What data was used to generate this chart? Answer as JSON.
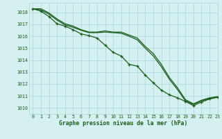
{
  "xlabel": "Graphe pression niveau de la mer (hPa)",
  "xlim": [
    -0.5,
    23
  ],
  "ylim": [
    1009.5,
    1018.8
  ],
  "yticks": [
    1010,
    1011,
    1012,
    1013,
    1014,
    1015,
    1016,
    1017,
    1018
  ],
  "xticks": [
    0,
    1,
    2,
    3,
    4,
    5,
    6,
    7,
    8,
    9,
    10,
    11,
    12,
    13,
    14,
    15,
    16,
    17,
    18,
    19,
    20,
    21,
    22,
    23
  ],
  "bg_color": "#d4f0f0",
  "grid_color": "#aad4d4",
  "line_color": "#1a5c1a",
  "line_smooth1": [
    1018.3,
    1018.3,
    1017.95,
    1017.45,
    1017.05,
    1016.85,
    1016.55,
    1016.35,
    1016.35,
    1016.45,
    1016.35,
    1016.35,
    1016.1,
    1015.85,
    1015.15,
    1014.55,
    1013.65,
    1012.55,
    1011.7,
    1010.7,
    1010.35,
    1010.65,
    1010.85,
    1010.95
  ],
  "line_smooth2": [
    1018.3,
    1018.2,
    1017.85,
    1017.35,
    1016.95,
    1016.75,
    1016.5,
    1016.3,
    1016.3,
    1016.35,
    1016.3,
    1016.25,
    1016.0,
    1015.7,
    1015.0,
    1014.35,
    1013.45,
    1012.4,
    1011.55,
    1010.6,
    1010.3,
    1010.6,
    1010.8,
    1010.9
  ],
  "line_markers": [
    1018.3,
    1018.1,
    1017.65,
    1017.05,
    1016.85,
    1016.55,
    1016.2,
    1016.05,
    1015.85,
    1015.25,
    1014.65,
    1014.35,
    1013.65,
    1013.5,
    1012.75,
    1012.1,
    1011.5,
    1011.1,
    1010.85,
    1010.55,
    1010.2,
    1010.5,
    1010.75,
    1010.9
  ]
}
